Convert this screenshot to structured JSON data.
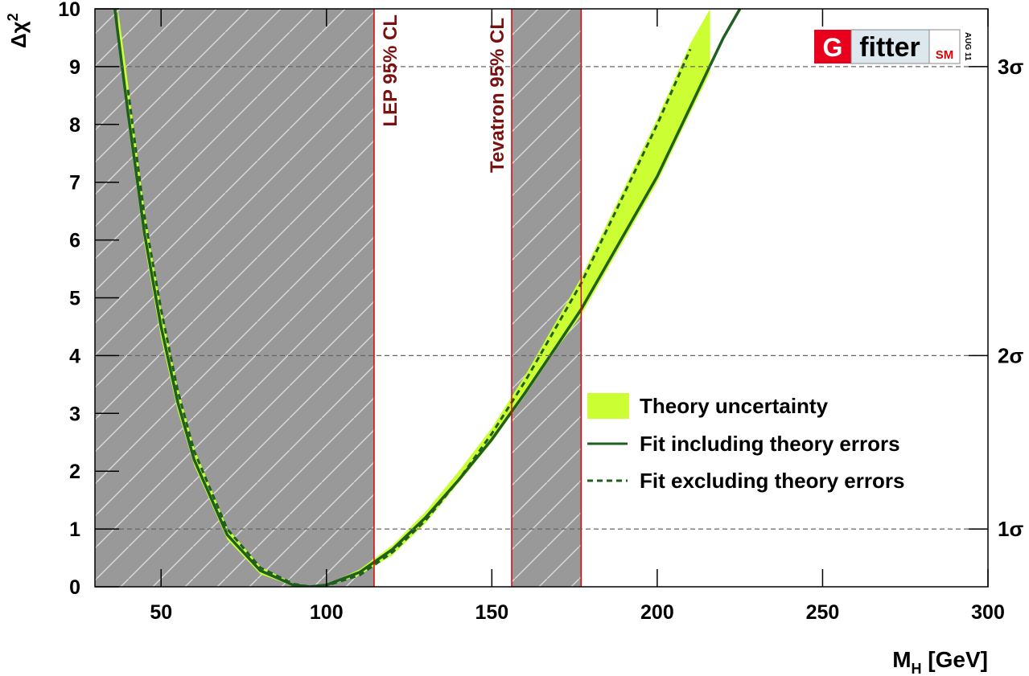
{
  "chart_data": {
    "type": "line",
    "ylabel": {
      "main": "Δχ",
      "sup": "2"
    },
    "xlabel": {
      "main": "M",
      "sub": "H",
      "rest": " [GeV]"
    },
    "xlim": [
      30,
      300
    ],
    "xticks": [
      50,
      100,
      150,
      200,
      250,
      300
    ],
    "ylim": [
      0,
      10
    ],
    "yticks": [
      0,
      1,
      2,
      3,
      4,
      5,
      6,
      7,
      8,
      9,
      10
    ],
    "y2lim": [
      0,
      10
    ],
    "y2ticks": [
      {
        "value": 1,
        "label": "1σ"
      },
      {
        "value": 4,
        "label": "2σ"
      },
      {
        "value": 9,
        "label": "3σ"
      }
    ],
    "excluded_regions": [
      {
        "label": "LEP 95% CL",
        "range": [
          30,
          114.4
        ]
      },
      {
        "label": "Tevatron 95% CL",
        "range": [
          156,
          177
        ]
      }
    ],
    "series": [
      {
        "name": "Theory uncertainty",
        "kind": "band",
        "color": "#ccff33",
        "x": [
          37,
          40,
          45,
          50,
          55,
          60,
          70,
          80,
          90,
          95,
          100,
          110,
          120,
          130,
          140,
          150,
          160,
          170,
          177,
          190,
          200,
          210,
          216
        ],
        "lower": [
          9.5,
          8.0,
          5.9,
          4.3,
          3.05,
          2.1,
          0.82,
          0.22,
          0.01,
          0,
          0.01,
          0.2,
          0.55,
          1.1,
          1.8,
          2.5,
          3.3,
          4.15,
          4.7,
          6.0,
          7.0,
          8.2,
          8.9
        ],
        "upper": [
          10,
          8.7,
          6.5,
          4.8,
          3.45,
          2.4,
          1.02,
          0.35,
          0.06,
          0.01,
          0.04,
          0.3,
          0.72,
          1.3,
          2.0,
          2.75,
          3.65,
          4.65,
          5.35,
          6.9,
          8.1,
          9.4,
          10
        ]
      },
      {
        "name": "Fit including theory errors",
        "kind": "solid",
        "color": "#1f5f1f",
        "x": [
          36,
          40,
          45,
          50,
          55,
          60,
          70,
          80,
          90,
          95,
          100,
          110,
          120,
          130,
          140,
          150,
          160,
          170,
          177,
          190,
          200,
          210,
          220,
          225
        ],
        "values": [
          10,
          8.2,
          6.1,
          4.5,
          3.2,
          2.2,
          0.9,
          0.28,
          0.03,
          0,
          0.03,
          0.25,
          0.65,
          1.2,
          1.85,
          2.55,
          3.35,
          4.2,
          4.8,
          6.1,
          7.1,
          8.3,
          9.5,
          10
        ]
      },
      {
        "name": "Fit excluding theory errors",
        "kind": "dashed",
        "color": "#1f5f1f",
        "x": [
          36,
          40,
          45,
          50,
          55,
          60,
          70,
          80,
          90,
          95,
          100,
          110,
          120,
          130,
          140,
          150,
          160,
          170,
          177,
          190,
          200,
          210,
          220,
          225
        ],
        "values": [
          null,
          8.6,
          6.4,
          4.8,
          3.4,
          2.35,
          1.0,
          0.33,
          0.05,
          0,
          0.02,
          0.2,
          0.6,
          1.15,
          1.85,
          2.65,
          3.55,
          4.55,
          5.25,
          6.8,
          8.0,
          9.3,
          null,
          null
        ]
      }
    ],
    "logo": {
      "g": "G",
      "fitter": "fitter",
      "sm": "SM",
      "date": "AUG 11"
    }
  }
}
